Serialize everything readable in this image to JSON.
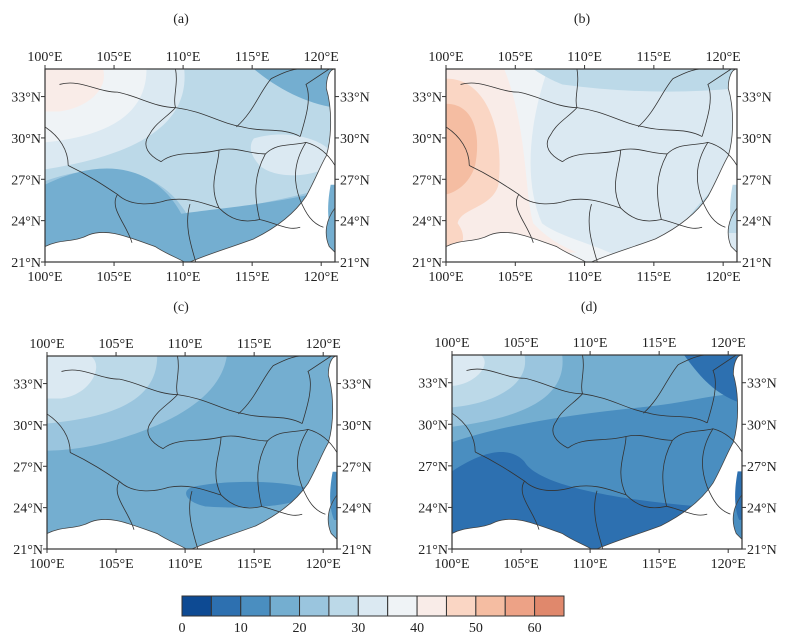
{
  "chart_data": {
    "type": "heatmap",
    "subtype": "filled-contour-map",
    "extent": {
      "lon": [
        100,
        121
      ],
      "lat": [
        21,
        35
      ]
    },
    "x_ticks": [
      100,
      105,
      110,
      115,
      120
    ],
    "x_tick_labels": [
      "100°E",
      "105°E",
      "110°E",
      "115°E",
      "120°E"
    ],
    "y_ticks": [
      21,
      24,
      27,
      30,
      33
    ],
    "y_tick_labels": [
      "21°N",
      "24°N",
      "27°N",
      "30°N",
      "33°N"
    ],
    "colorbar": {
      "levels": [
        0,
        5,
        10,
        15,
        20,
        25,
        30,
        35,
        40,
        45,
        50,
        55,
        60,
        65
      ],
      "tick_values": [
        0,
        10,
        20,
        30,
        40,
        50,
        60
      ],
      "tick_labels": [
        "0",
        "10",
        "20",
        "30",
        "40",
        "50",
        "60"
      ],
      "colors": [
        "#0d4a93",
        "#2d70b0",
        "#4a8ec0",
        "#74aed0",
        "#9ac5de",
        "#bcd9e8",
        "#dbe9f2",
        "#eff3f6",
        "#f9ece8",
        "#fad6c4",
        "#f5bda2",
        "#eda286",
        "#e0886c"
      ],
      "orientation": "horizontal",
      "position": "bottom"
    },
    "panels": [
      {
        "title": "(a)",
        "background_level": 20,
        "regions": [
          {
            "level": 40,
            "desc": "northwest peak"
          },
          {
            "level": 35,
            "desc": "northwest"
          },
          {
            "level": 30,
            "desc": "northwest band"
          },
          {
            "level": 25,
            "desc": "central belt"
          },
          {
            "level": 30,
            "desc": "east-central patch"
          },
          {
            "level": 15,
            "desc": "southwest"
          },
          {
            "level": 15,
            "desc": "northeast corner"
          }
        ]
      },
      {
        "title": "(b)",
        "background_level": 30,
        "regions": [
          {
            "level": 50,
            "desc": "west core"
          },
          {
            "level": 45,
            "desc": "west"
          },
          {
            "level": 40,
            "desc": "west band"
          },
          {
            "level": 35,
            "desc": "west-central"
          },
          {
            "level": 25,
            "desc": "north strip"
          },
          {
            "level": 25,
            "desc": "southeast coast"
          }
        ]
      },
      {
        "title": "(c)",
        "background_level": 15,
        "regions": [
          {
            "level": 30,
            "desc": "northwest peak"
          },
          {
            "level": 25,
            "desc": "northwest"
          },
          {
            "level": 20,
            "desc": "north band"
          },
          {
            "level": 10,
            "desc": "south core"
          }
        ]
      },
      {
        "title": "(d)",
        "background_level": 10,
        "regions": [
          {
            "level": 30,
            "desc": "northwest peak"
          },
          {
            "level": 25,
            "desc": "northwest"
          },
          {
            "level": 20,
            "desc": "north"
          },
          {
            "level": 15,
            "desc": "north band"
          },
          {
            "level": 5,
            "desc": "southwest core"
          },
          {
            "level": 5,
            "desc": "northeast patch"
          }
        ]
      }
    ]
  }
}
